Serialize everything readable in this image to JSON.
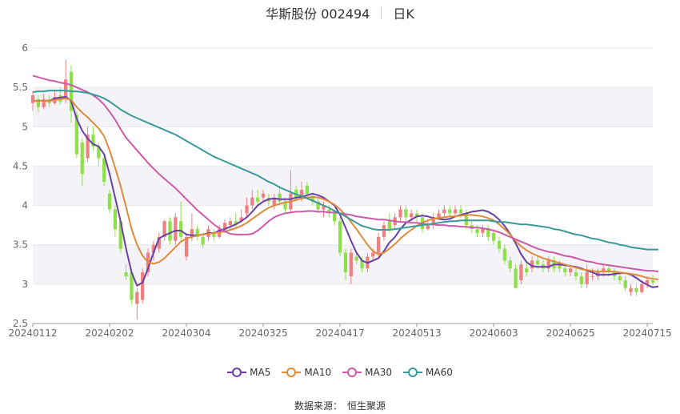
{
  "header": {
    "title": "华斯股份 002494",
    "period": "日K"
  },
  "source": {
    "label": "数据来源：",
    "value": "恒生聚源"
  },
  "colors": {
    "up": "#f08080",
    "down": "#8ee04a",
    "band": "#f4f4f8",
    "grid": "#e8e8ee",
    "MA5": "#6a3fa6",
    "MA10": "#e08a3a",
    "MA30": "#cc5aa8",
    "MA60": "#3a9a9a"
  },
  "chart_data": {
    "type": "candlestick",
    "xlabel": "",
    "ylabel": "",
    "ylim": [
      2.5,
      6
    ],
    "y_ticks": [
      "2.5",
      "3",
      "3.5",
      "4",
      "4.5",
      "5",
      "5.5",
      "6"
    ],
    "x_ticks": [
      {
        "label": "20240112",
        "idx": 0
      },
      {
        "label": "20240202",
        "idx": 14
      },
      {
        "label": "20240304",
        "idx": 28
      },
      {
        "label": "20240325",
        "idx": 42
      },
      {
        "label": "20240417",
        "idx": 56
      },
      {
        "label": "20240513",
        "idx": 70
      },
      {
        "label": "20240603",
        "idx": 84
      },
      {
        "label": "20240625",
        "idx": 98
      },
      {
        "label": "20240715",
        "idx": 112
      }
    ],
    "candles": [
      [
        5.3,
        5.4,
        5.45,
        5.2
      ],
      [
        5.35,
        5.25,
        5.4,
        5.18
      ],
      [
        5.25,
        5.35,
        5.42,
        5.22
      ],
      [
        5.35,
        5.3,
        5.4,
        5.25
      ],
      [
        5.3,
        5.38,
        5.45,
        5.28
      ],
      [
        5.4,
        5.32,
        5.5,
        5.28
      ],
      [
        5.35,
        5.6,
        5.85,
        5.3
      ],
      [
        5.7,
        5.2,
        5.78,
        5.05
      ],
      [
        5.15,
        4.65,
        5.2,
        4.6
      ],
      [
        4.8,
        4.4,
        4.85,
        4.25
      ],
      [
        4.6,
        4.9,
        5.0,
        4.55
      ],
      [
        4.9,
        4.75,
        5.0,
        4.7
      ],
      [
        4.75,
        4.6,
        4.8,
        4.5
      ],
      [
        4.6,
        4.3,
        4.65,
        4.25
      ],
      [
        4.15,
        3.95,
        4.2,
        3.9
      ],
      [
        3.95,
        3.7,
        4.0,
        3.6
      ],
      [
        3.8,
        3.45,
        3.85,
        3.4
      ],
      [
        3.15,
        3.1,
        3.25,
        3.05
      ],
      [
        3.15,
        2.8,
        3.2,
        2.75
      ],
      [
        2.75,
        2.9,
        2.95,
        2.55
      ],
      [
        2.8,
        3.15,
        3.2,
        2.75
      ],
      [
        3.15,
        3.4,
        3.45,
        3.1
      ],
      [
        3.4,
        3.5,
        3.55,
        3.3
      ],
      [
        3.45,
        3.6,
        3.65,
        3.4
      ],
      [
        3.6,
        3.8,
        3.82,
        3.55
      ],
      [
        3.8,
        3.55,
        3.85,
        3.5
      ],
      [
        3.55,
        3.85,
        3.9,
        3.5
      ],
      [
        3.8,
        3.6,
        4.05,
        3.55
      ],
      [
        3.35,
        3.6,
        3.65,
        3.3
      ],
      [
        3.6,
        3.7,
        3.9,
        3.55
      ],
      [
        3.7,
        3.6,
        3.75,
        3.55
      ],
      [
        3.6,
        3.5,
        3.65,
        3.45
      ],
      [
        3.6,
        3.7,
        3.75,
        3.55
      ],
      [
        3.65,
        3.6,
        3.7,
        3.55
      ],
      [
        3.6,
        3.7,
        3.75,
        3.58
      ],
      [
        3.7,
        3.78,
        3.82,
        3.65
      ],
      [
        3.75,
        3.8,
        3.85,
        3.7
      ],
      [
        3.8,
        3.75,
        3.9,
        3.7
      ],
      [
        3.8,
        3.85,
        3.95,
        3.78
      ],
      [
        3.9,
        4.0,
        4.1,
        3.85
      ],
      [
        4.0,
        4.1,
        4.2,
        3.95
      ],
      [
        4.1,
        4.05,
        4.2,
        4.0
      ],
      [
        4.1,
        4.15,
        4.2,
        4.05
      ],
      [
        4.1,
        4.05,
        4.15,
        4.0
      ],
      [
        4.0,
        4.1,
        4.15,
        3.95
      ],
      [
        4.15,
        4.05,
        4.25,
        4.0
      ],
      [
        4.05,
        3.95,
        4.1,
        3.9
      ],
      [
        3.95,
        4.15,
        4.45,
        3.9
      ],
      [
        4.2,
        4.1,
        4.25,
        4.05
      ],
      [
        4.1,
        4.2,
        4.3,
        4.05
      ],
      [
        4.25,
        4.15,
        4.3,
        4.1
      ],
      [
        4.1,
        4.05,
        4.15,
        4.0
      ],
      [
        4.05,
        3.95,
        4.1,
        3.9
      ],
      [
        3.95,
        4.0,
        4.05,
        3.85
      ],
      [
        3.95,
        3.9,
        4.0,
        3.85
      ],
      [
        3.9,
        3.8,
        3.95,
        3.75
      ],
      [
        3.8,
        3.4,
        3.85,
        3.35
      ],
      [
        3.4,
        3.15,
        3.45,
        3.05
      ],
      [
        3.1,
        3.4,
        3.45,
        3.0
      ],
      [
        3.35,
        3.3,
        3.4,
        3.25
      ],
      [
        3.3,
        3.2,
        3.35,
        3.15
      ],
      [
        3.2,
        3.35,
        3.4,
        3.15
      ],
      [
        3.35,
        3.4,
        3.45,
        3.3
      ],
      [
        3.4,
        3.6,
        3.65,
        3.35
      ],
      [
        3.6,
        3.75,
        3.8,
        3.55
      ],
      [
        3.8,
        3.7,
        3.9,
        3.65
      ],
      [
        3.75,
        3.85,
        3.9,
        3.7
      ],
      [
        3.85,
        3.95,
        4.0,
        3.8
      ],
      [
        3.95,
        3.85,
        4.0,
        3.8
      ],
      [
        3.85,
        3.9,
        3.95,
        3.8
      ],
      [
        3.9,
        3.85,
        3.95,
        3.78
      ],
      [
        3.85,
        3.7,
        3.9,
        3.65
      ],
      [
        3.7,
        3.75,
        3.8,
        3.68
      ],
      [
        3.75,
        3.85,
        3.9,
        3.7
      ],
      [
        3.85,
        3.9,
        3.95,
        3.82
      ],
      [
        3.9,
        3.95,
        4.0,
        3.85
      ],
      [
        3.95,
        3.9,
        4.0,
        3.85
      ],
      [
        3.9,
        3.95,
        4.0,
        3.85
      ],
      [
        3.95,
        3.9,
        4.0,
        3.85
      ],
      [
        3.9,
        3.75,
        3.95,
        3.7
      ],
      [
        3.75,
        3.7,
        3.8,
        3.65
      ],
      [
        3.7,
        3.65,
        3.75,
        3.6
      ],
      [
        3.65,
        3.7,
        3.75,
        3.6
      ],
      [
        3.7,
        3.6,
        3.75,
        3.55
      ],
      [
        3.65,
        3.55,
        3.7,
        3.5
      ],
      [
        3.55,
        3.45,
        3.6,
        3.4
      ],
      [
        3.45,
        3.3,
        3.5,
        3.25
      ],
      [
        3.3,
        3.2,
        3.35,
        3.15
      ],
      [
        3.2,
        2.95,
        3.25,
        2.95
      ],
      [
        3.05,
        3.25,
        3.3,
        3.0
      ],
      [
        3.2,
        3.15,
        3.3,
        3.1
      ],
      [
        3.2,
        3.3,
        3.35,
        3.15
      ],
      [
        3.3,
        3.25,
        3.35,
        3.2
      ],
      [
        3.25,
        3.2,
        3.3,
        3.15
      ],
      [
        3.2,
        3.3,
        3.35,
        3.15
      ],
      [
        3.3,
        3.2,
        3.35,
        3.15
      ],
      [
        3.25,
        3.2,
        3.3,
        3.15
      ],
      [
        3.2,
        3.15,
        3.25,
        3.1
      ],
      [
        3.15,
        3.2,
        3.25,
        3.1
      ],
      [
        3.15,
        3.1,
        3.2,
        3.05
      ],
      [
        3.1,
        3.0,
        3.15,
        2.95
      ],
      [
        3.0,
        3.15,
        3.25,
        2.95
      ],
      [
        3.1,
        3.1,
        3.2,
        3.05
      ],
      [
        3.1,
        3.15,
        3.2,
        3.05
      ],
      [
        3.15,
        3.2,
        3.25,
        3.1
      ],
      [
        3.2,
        3.15,
        3.25,
        3.1
      ],
      [
        3.15,
        3.1,
        3.2,
        3.05
      ],
      [
        3.1,
        3.05,
        3.15,
        3.0
      ],
      [
        3.05,
        2.95,
        3.1,
        2.9
      ],
      [
        2.9,
        2.95,
        3.0,
        2.85
      ],
      [
        2.95,
        2.9,
        3.0,
        2.85
      ],
      [
        2.9,
        3.0,
        3.05,
        2.88
      ],
      [
        3.0,
        3.05,
        3.1,
        2.95
      ],
      [
        3.05,
        3.02,
        3.12,
        2.98
      ]
    ],
    "series": [
      {
        "name": "MA5",
        "values": [
          5.33,
          5.33,
          5.33,
          5.33,
          5.36,
          5.37,
          5.38,
          5.33,
          5.1,
          4.95,
          4.85,
          4.78,
          4.75,
          4.65,
          4.4,
          4.1,
          3.8,
          3.45,
          3.15,
          2.98,
          3.02,
          3.2,
          3.4,
          3.58,
          3.62,
          3.65,
          3.68,
          3.68,
          3.63,
          3.62,
          3.62,
          3.63,
          3.65,
          3.65,
          3.68,
          3.7,
          3.73,
          3.76,
          3.8,
          3.85,
          3.92,
          4.0,
          4.05,
          4.08,
          4.09,
          4.08,
          4.08,
          4.08,
          4.1,
          4.11,
          4.13,
          4.15,
          4.13,
          4.1,
          4.05,
          4.0,
          3.88,
          3.72,
          3.55,
          3.4,
          3.3,
          3.27,
          3.3,
          3.33,
          3.42,
          3.53,
          3.6,
          3.7,
          3.78,
          3.82,
          3.86,
          3.87,
          3.86,
          3.84,
          3.83,
          3.82,
          3.83,
          3.86,
          3.88,
          3.9,
          3.92,
          3.93,
          3.94,
          3.92,
          3.88,
          3.82,
          3.74,
          3.64,
          3.52,
          3.38,
          3.28,
          3.23,
          3.22,
          3.22,
          3.22,
          3.25,
          3.25,
          3.24,
          3.23,
          3.22,
          3.2,
          3.17,
          3.15,
          3.12,
          3.12,
          3.12,
          3.13,
          3.14,
          3.14,
          3.12,
          3.08,
          3.03,
          2.99,
          2.96,
          2.97
        ]
      },
      {
        "name": "MA10",
        "values": [
          5.33,
          5.33,
          5.33,
          5.33,
          5.34,
          5.35,
          5.36,
          5.34,
          5.25,
          5.18,
          5.12,
          5.05,
          4.98,
          4.88,
          4.7,
          4.48,
          4.25,
          3.98,
          3.7,
          3.5,
          3.36,
          3.28,
          3.26,
          3.28,
          3.33,
          3.4,
          3.47,
          3.54,
          3.58,
          3.6,
          3.62,
          3.63,
          3.64,
          3.65,
          3.66,
          3.67,
          3.69,
          3.71,
          3.74,
          3.78,
          3.83,
          3.88,
          3.93,
          3.97,
          4.0,
          4.02,
          4.04,
          4.05,
          4.07,
          4.09,
          4.1,
          4.11,
          4.1,
          4.08,
          4.05,
          4.01,
          3.95,
          3.88,
          3.79,
          3.7,
          3.6,
          3.5,
          3.42,
          3.38,
          3.4,
          3.45,
          3.51,
          3.58,
          3.64,
          3.69,
          3.74,
          3.78,
          3.81,
          3.83,
          3.84,
          3.85,
          3.86,
          3.86,
          3.87,
          3.88,
          3.88,
          3.87,
          3.86,
          3.84,
          3.81,
          3.76,
          3.7,
          3.63,
          3.55,
          3.48,
          3.43,
          3.39,
          3.36,
          3.33,
          3.31,
          3.29,
          3.27,
          3.25,
          3.23,
          3.21,
          3.19,
          3.18,
          3.17,
          3.16,
          3.16,
          3.16,
          3.16,
          3.15,
          3.14,
          3.13,
          3.12,
          3.1,
          3.08,
          3.07,
          3.06
        ]
      },
      {
        "name": "MA30",
        "values": [
          5.65,
          5.63,
          5.61,
          5.59,
          5.58,
          5.56,
          5.55,
          5.53,
          5.5,
          5.47,
          5.44,
          5.4,
          5.35,
          5.28,
          5.19,
          5.09,
          4.97,
          4.86,
          4.78,
          4.7,
          4.62,
          4.54,
          4.47,
          4.4,
          4.34,
          4.28,
          4.22,
          4.15,
          4.08,
          4.01,
          3.94,
          3.88,
          3.82,
          3.76,
          3.71,
          3.67,
          3.64,
          3.63,
          3.63,
          3.63,
          3.64,
          3.68,
          3.74,
          3.8,
          3.85,
          3.88,
          3.9,
          3.91,
          3.92,
          3.92,
          3.93,
          3.93,
          3.92,
          3.92,
          3.91,
          3.91,
          3.9,
          3.89,
          3.88,
          3.86,
          3.85,
          3.84,
          3.83,
          3.82,
          3.82,
          3.81,
          3.8,
          3.79,
          3.79,
          3.78,
          3.78,
          3.77,
          3.76,
          3.76,
          3.75,
          3.75,
          3.74,
          3.74,
          3.73,
          3.73,
          3.72,
          3.72,
          3.71,
          3.7,
          3.68,
          3.66,
          3.63,
          3.6,
          3.57,
          3.54,
          3.51,
          3.48,
          3.45,
          3.43,
          3.41,
          3.4,
          3.38,
          3.36,
          3.35,
          3.33,
          3.31,
          3.29,
          3.28,
          3.26,
          3.25,
          3.24,
          3.23,
          3.22,
          3.21,
          3.2,
          3.19,
          3.18,
          3.17,
          3.17,
          3.16
        ]
      },
      {
        "name": "MA60",
        "values": [
          5.44,
          5.45,
          5.45,
          5.46,
          5.46,
          5.46,
          5.46,
          5.45,
          5.45,
          5.44,
          5.43,
          5.41,
          5.39,
          5.36,
          5.32,
          5.27,
          5.22,
          5.18,
          5.14,
          5.11,
          5.08,
          5.05,
          5.02,
          4.99,
          4.96,
          4.93,
          4.9,
          4.86,
          4.82,
          4.78,
          4.74,
          4.7,
          4.66,
          4.62,
          4.59,
          4.56,
          4.53,
          4.5,
          4.47,
          4.44,
          4.41,
          4.38,
          4.34,
          4.3,
          4.27,
          4.23,
          4.2,
          4.17,
          4.14,
          4.12,
          4.09,
          4.06,
          4.03,
          4.0,
          3.97,
          3.93,
          3.9,
          3.86,
          3.82,
          3.78,
          3.74,
          3.72,
          3.7,
          3.69,
          3.69,
          3.69,
          3.7,
          3.71,
          3.72,
          3.73,
          3.74,
          3.75,
          3.76,
          3.77,
          3.78,
          3.79,
          3.8,
          3.8,
          3.81,
          3.81,
          3.81,
          3.81,
          3.81,
          3.81,
          3.8,
          3.79,
          3.79,
          3.78,
          3.77,
          3.76,
          3.76,
          3.75,
          3.74,
          3.73,
          3.72,
          3.7,
          3.69,
          3.67,
          3.65,
          3.63,
          3.62,
          3.6,
          3.58,
          3.57,
          3.55,
          3.53,
          3.52,
          3.5,
          3.49,
          3.47,
          3.46,
          3.45,
          3.44,
          3.44,
          3.44
        ]
      }
    ]
  }
}
